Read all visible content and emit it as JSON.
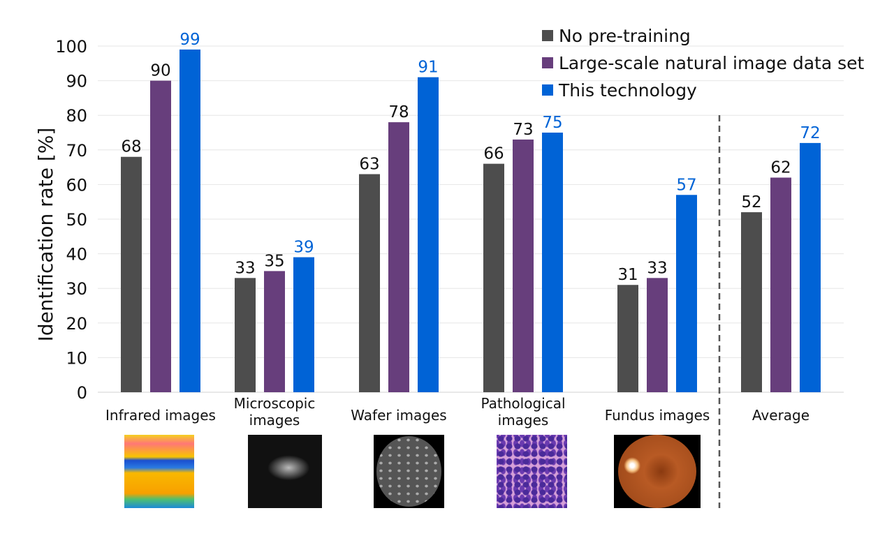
{
  "chart_data": {
    "type": "bar",
    "ylabel": "Identification rate [%]",
    "ylim": [
      0,
      100
    ],
    "yticks": [
      0,
      10,
      20,
      30,
      40,
      50,
      60,
      70,
      80,
      90,
      100
    ],
    "grid": true,
    "legend_placement": "top-right",
    "categories": [
      "Infrared images",
      "Microscopic images",
      "Wafer images",
      "Pathological images",
      "Fundus images",
      "Average"
    ],
    "category_lines": [
      [
        "Infrared images"
      ],
      [
        "Microscopic",
        "images"
      ],
      [
        "Wafer images"
      ],
      [
        "Pathological",
        "images"
      ],
      [
        "Fundus images"
      ],
      [
        "Average"
      ]
    ],
    "series": [
      {
        "name": "No pre-training",
        "color": "#4d4d4d",
        "label_color": "#111111",
        "values": [
          68,
          33,
          63,
          66,
          31,
          52
        ]
      },
      {
        "name": "Large-scale natural image data set",
        "color": "#673e7c",
        "label_color": "#111111",
        "values": [
          90,
          35,
          78,
          73,
          33,
          62
        ]
      },
      {
        "name": "This technology",
        "color": "#0063d6",
        "label_color": "#0063d6",
        "values": [
          99,
          39,
          91,
          75,
          57,
          72
        ]
      }
    ],
    "separator": "dashed line before Average"
  },
  "images": [
    "infrared",
    "microscopic",
    "wafer",
    "pathological",
    "fundus"
  ]
}
